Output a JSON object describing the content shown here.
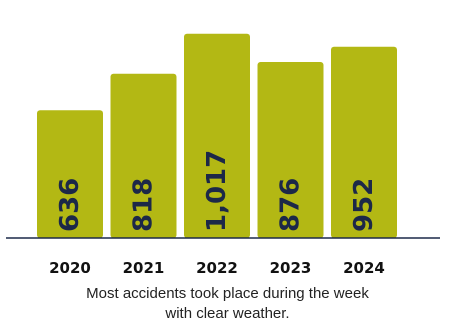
{
  "chart_data": {
    "type": "bar",
    "categories": [
      "2020",
      "2021",
      "2022",
      "2023",
      "2024"
    ],
    "values": [
      636,
      818,
      1017,
      876,
      952
    ],
    "value_labels": [
      "636",
      "818",
      "1,017",
      "876",
      "952"
    ],
    "title": "",
    "xlabel": "",
    "ylabel": "",
    "ylim": [
      0,
      1170
    ],
    "grid": false,
    "legend": "none",
    "bar_color": "#b3b814",
    "label_color": "#1c2848",
    "baseline_color": "#1c2848"
  },
  "caption": {
    "line1": "Most accidents took place during the week",
    "line2": "with clear weather."
  }
}
